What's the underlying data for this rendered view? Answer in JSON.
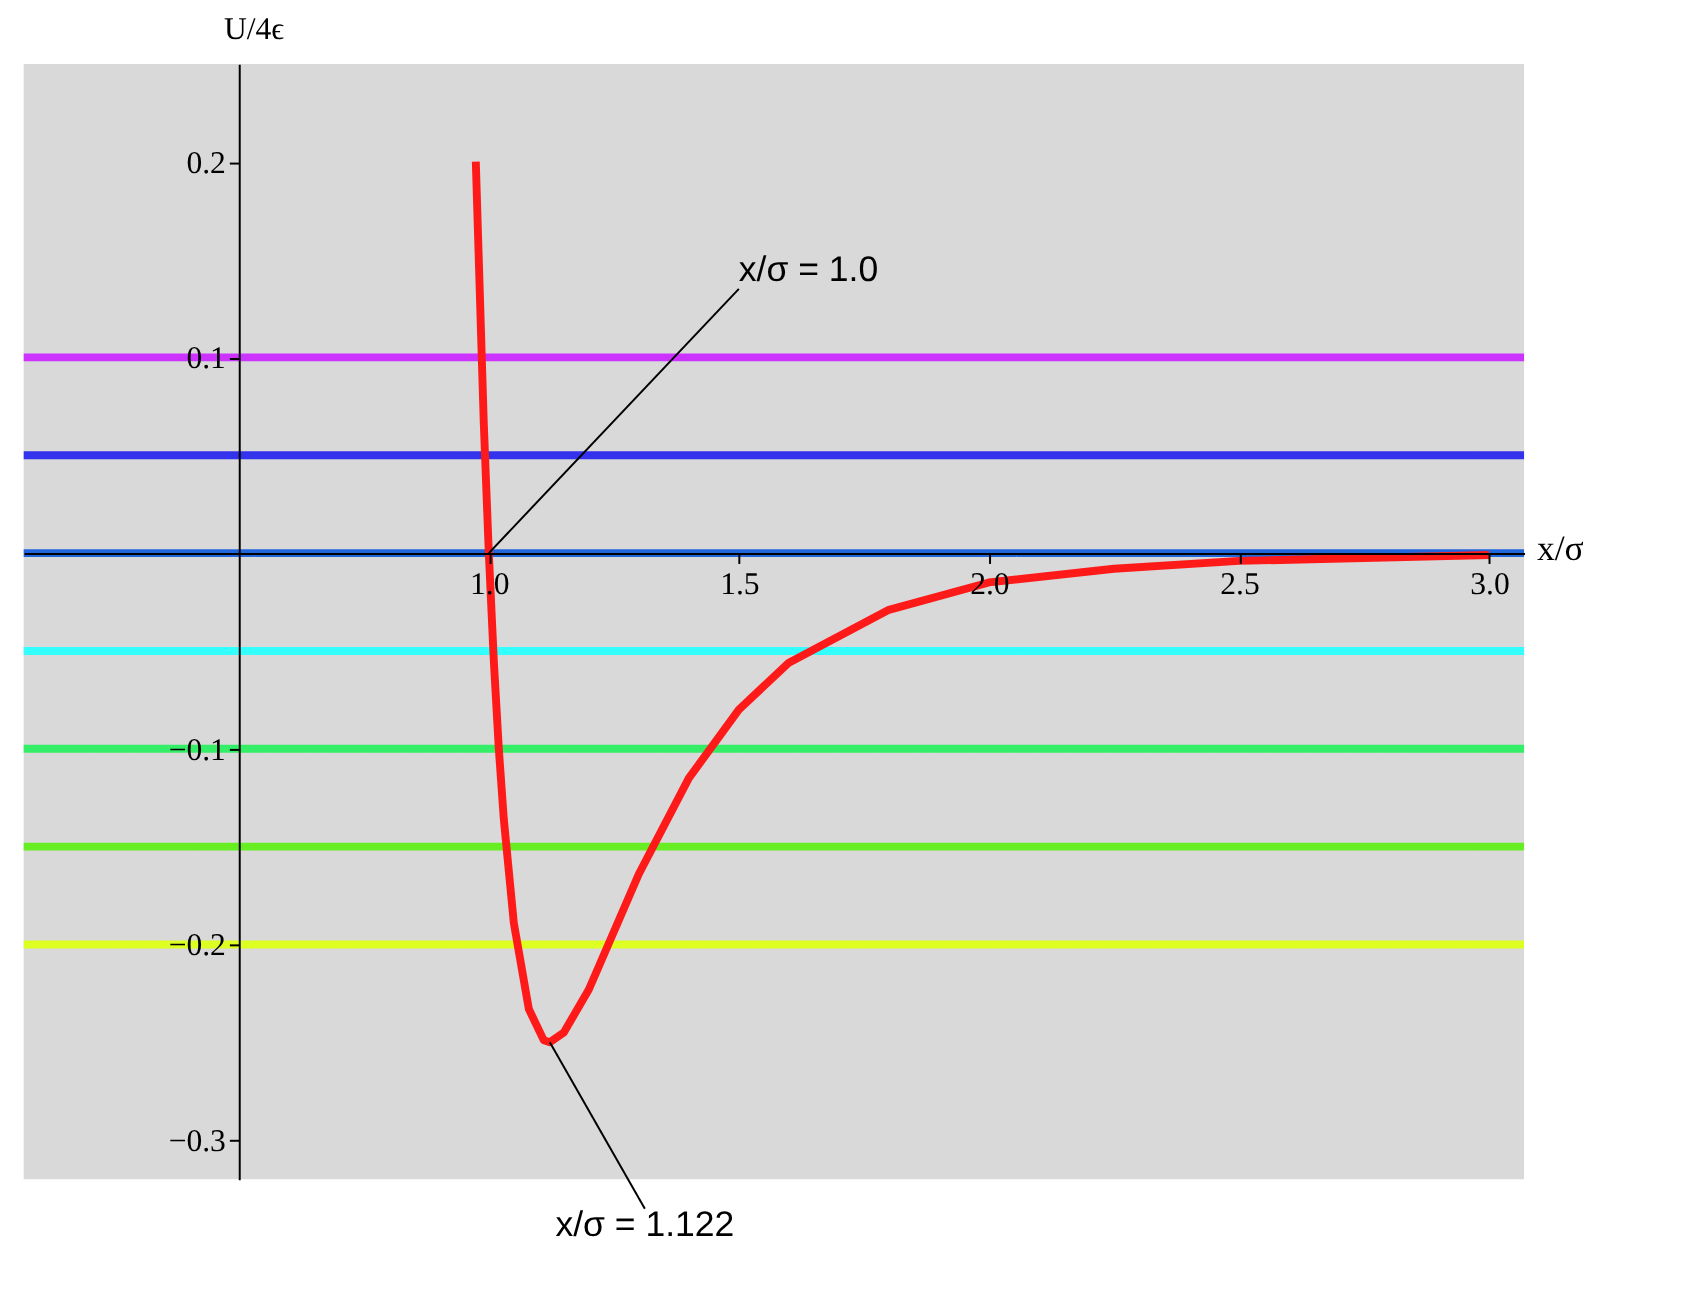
{
  "chart_data": {
    "type": "line",
    "xlabel": "x/σ",
    "ylabel": "U/4ϵ",
    "xlim": [
      0.07,
      3.07
    ],
    "ylim": [
      -0.32,
      0.25
    ],
    "xticks": [
      {
        "value": 1,
        "label": "1.0"
      },
      1.5,
      {
        "value": 2,
        "label": "2.0"
      },
      2.5,
      {
        "value": 3,
        "label": "3.0"
      }
    ],
    "yticks": [
      -0.3,
      -0.2,
      -0.1,
      0.1,
      0.2
    ],
    "grid": false,
    "marker": "none",
    "line_style": "solid",
    "series": [
      {
        "color": "#ff1a1a",
        "x": [
          0.974,
          0.99,
          1.0,
          1.01,
          1.02,
          1.03,
          1.05,
          1.08,
          1.11,
          1.122,
          1.15,
          1.2,
          1.3,
          1.4,
          1.5,
          1.6,
          1.8,
          2.0,
          2.25,
          2.5,
          3.0
        ],
        "values": [
          0.2,
          0.066,
          0.0,
          -0.055,
          -0.1,
          -0.136,
          -0.189,
          -0.233,
          -0.249,
          -0.25,
          -0.245,
          -0.223,
          -0.164,
          -0.115,
          -0.08,
          -0.056,
          -0.029,
          -0.015,
          -0.008,
          -0.004,
          -0.001
        ]
      }
    ],
    "ref_lines": [
      {
        "axis": "y",
        "value": 0.1,
        "color": "#cc33ff"
      },
      {
        "axis": "y",
        "value": 0.05,
        "color": "#3333ee"
      },
      {
        "axis": "y",
        "value": 0,
        "color": "#2266dd"
      },
      {
        "axis": "y",
        "value": -0.05,
        "color": "#33ffff"
      },
      {
        "axis": "y",
        "value": -0.1,
        "color": "#33ee66"
      },
      {
        "axis": "y",
        "value": -0.15,
        "color": "#66ee22"
      },
      {
        "axis": "y",
        "value": -0.2,
        "color": "#ddff22"
      }
    ],
    "annotations": [
      {
        "text": "x/σ = 1.0",
        "x": 1.0,
        "y": 0.0
      },
      {
        "text": "x/σ = 1.122",
        "x": 1.122,
        "y": -0.25
      }
    ]
  }
}
